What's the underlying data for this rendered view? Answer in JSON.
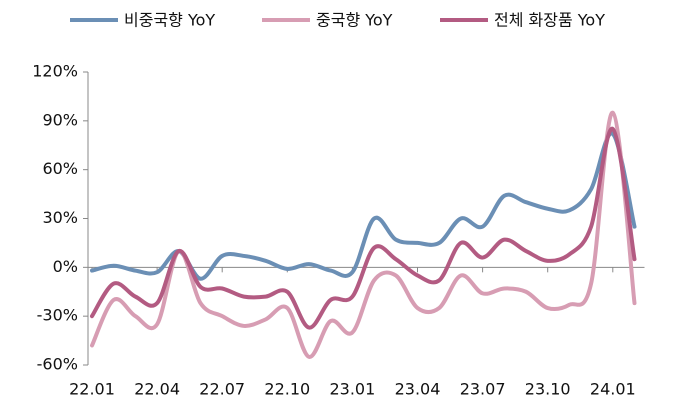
{
  "chart_data": {
    "type": "line",
    "categories": [
      "22.01",
      null,
      null,
      "22.04",
      null,
      null,
      "22.07",
      null,
      null,
      "22.10",
      null,
      null,
      "23.01",
      null,
      null,
      "23.04",
      null,
      null,
      "23.07",
      null,
      null,
      "23.10",
      null,
      null,
      "24.01",
      null
    ],
    "series": [
      {
        "name": "비중국향 YoY",
        "color": "#6b8fb5",
        "values": [
          -2,
          1,
          -2,
          -3,
          10,
          -7,
          7,
          7,
          4,
          -1,
          2,
          -2,
          -3,
          30,
          17,
          15,
          15,
          30,
          25,
          44,
          40,
          36,
          35,
          48,
          82,
          25
        ]
      },
      {
        "name": "중국향 YoY",
        "color": "#d79db3",
        "values": [
          -48,
          -20,
          -30,
          -35,
          10,
          -22,
          -30,
          -36,
          -32,
          -25,
          -55,
          -33,
          -40,
          -8,
          -5,
          -25,
          -25,
          -5,
          -16,
          -13,
          -15,
          -25,
          -23,
          -10,
          95,
          -22
        ]
      },
      {
        "name": "전체 화장품 YoY",
        "color": "#b35b82",
        "values": [
          -30,
          -10,
          -18,
          -22,
          10,
          -12,
          -13,
          -18,
          -18,
          -15,
          -37,
          -20,
          -18,
          12,
          5,
          -5,
          -8,
          15,
          6,
          17,
          10,
          4,
          8,
          25,
          85,
          5
        ]
      }
    ],
    "ylim": [
      -60,
      120
    ],
    "yticks": [
      {
        "value": -60,
        "label": "-60%"
      },
      {
        "value": -30,
        "label": "-30%"
      },
      {
        "value": 0,
        "label": "0%"
      },
      {
        "value": 30,
        "label": "30%"
      },
      {
        "value": 60,
        "label": "60%"
      },
      {
        "value": 90,
        "label": "90%"
      },
      {
        "value": 120,
        "label": "120%"
      }
    ],
    "legend": "top"
  }
}
